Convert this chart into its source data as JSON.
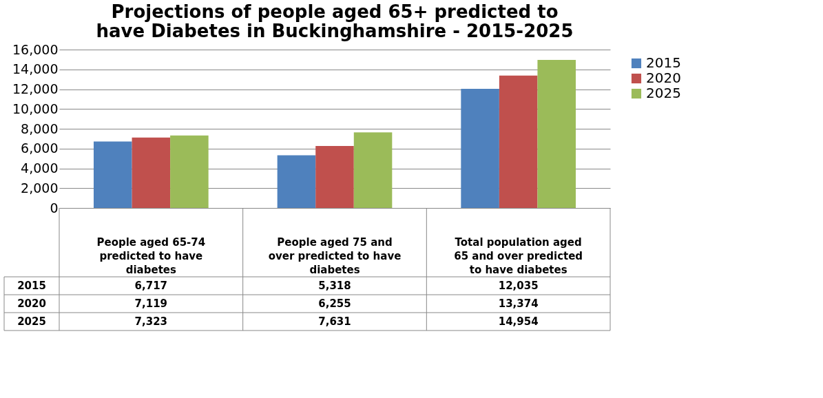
{
  "chart_data": {
    "type": "bar",
    "title": "Projections of people aged 65+ predicted to have Diabetes in Buckinghamshire - 2015-2025",
    "categories": [
      "People aged 65-74 predicted to have diabetes",
      "People aged 75 and over predicted to have diabetes",
      "Total population aged 65 and over predicted to have diabetes"
    ],
    "series": [
      {
        "name": "2015",
        "color": "#4f81bd",
        "values": [
          6717,
          5318,
          12035
        ],
        "value_labels": [
          "6,717",
          "5,318",
          "12,035"
        ]
      },
      {
        "name": "2020",
        "color": "#c0504d",
        "values": [
          7119,
          6255,
          13374
        ],
        "value_labels": [
          "7,119",
          "6,255",
          "13,374"
        ]
      },
      {
        "name": "2025",
        "color": "#9bbb59",
        "values": [
          7323,
          7631,
          14954
        ],
        "value_labels": [
          "7,323",
          "7,631",
          "14,954"
        ]
      }
    ],
    "ylim": [
      0,
      16000
    ],
    "yticks": [
      0,
      {
        "value": 2000,
        "label": "2,000"
      },
      {
        "value": 4000,
        "label": "4,000"
      },
      {
        "value": 6000,
        "label": "6,000"
      },
      {
        "value": 8000,
        "label": "8,000"
      },
      {
        "value": 10000,
        "label": "10,000"
      },
      {
        "value": 12000,
        "label": "12,000"
      },
      {
        "value": 14000,
        "label": "14,000"
      },
      {
        "value": 16000,
        "label": "16,000"
      }
    ],
    "grid": "y",
    "legend": "right"
  }
}
